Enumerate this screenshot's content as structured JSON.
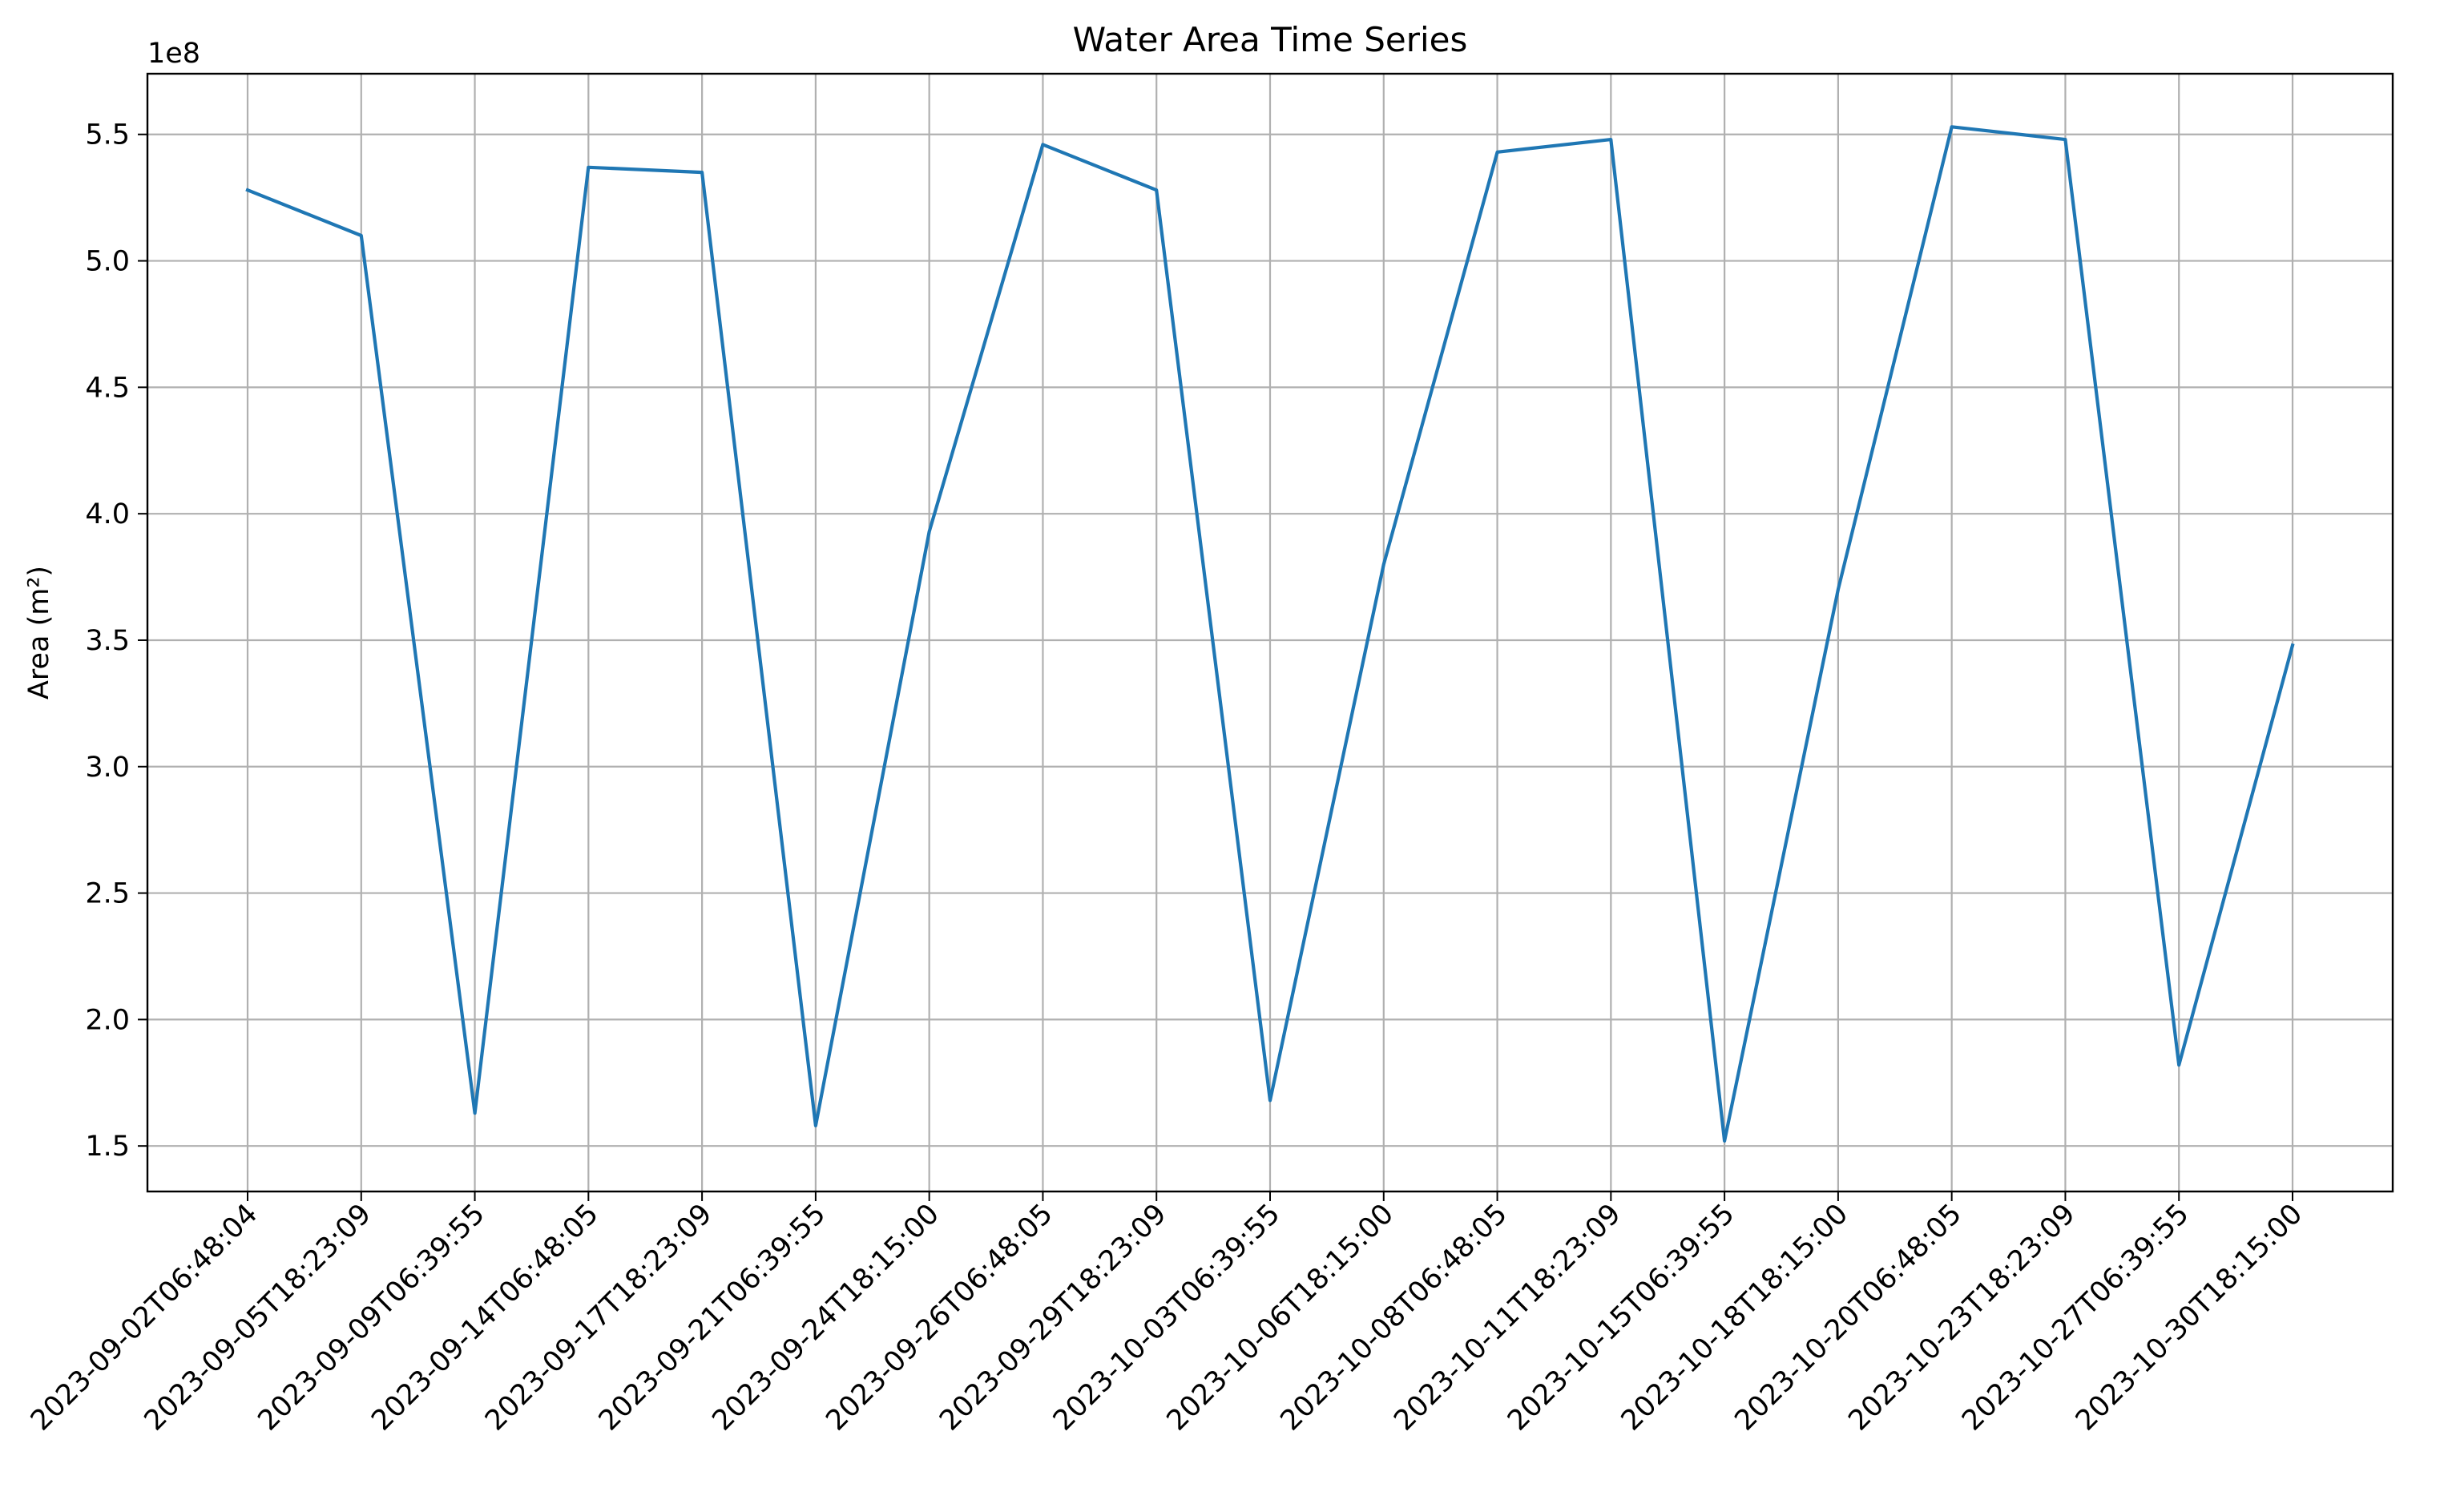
{
  "chart_data": {
    "type": "line",
    "title": "Water Area Time Series",
    "xlabel": "",
    "ylabel": "Area (m²)",
    "y_offset_label": "1e8",
    "ylim": [
      1.32,
      5.74
    ],
    "yticks": [
      1.5,
      2.0,
      2.5,
      3.0,
      3.5,
      4.0,
      4.5,
      5.0,
      5.5
    ],
    "ytick_labels": [
      "1.5",
      "2.0",
      "2.5",
      "3.0",
      "3.5",
      "4.0",
      "4.5",
      "5.0",
      "5.5"
    ],
    "grid": true,
    "x": [
      "2023-09-02T06:48:04",
      "2023-09-05T18:23:09",
      "2023-09-09T06:39:55",
      "2023-09-14T06:48:05",
      "2023-09-17T18:23:09",
      "2023-09-21T06:39:55",
      "2023-09-24T18:15:00",
      "2023-09-26T06:48:05",
      "2023-09-29T18:23:09",
      "2023-10-03T06:39:55",
      "2023-10-06T18:15:00",
      "2023-10-08T06:48:05",
      "2023-10-11T18:23:09",
      "2023-10-15T06:39:55",
      "2023-10-18T18:15:00",
      "2023-10-20T06:48:05",
      "2023-10-23T18:23:09",
      "2023-10-27T06:39:55",
      "2023-10-30T18:15:00"
    ],
    "series": [
      {
        "name": "",
        "color": "#1f77b4",
        "values": [
          528000000,
          510000000,
          163000000,
          537000000,
          535000000,
          158000000,
          393000000,
          546000000,
          528000000,
          168000000,
          380000000,
          543000000,
          548000000,
          152000000,
          370000000,
          553000000,
          548000000,
          182000000,
          348000000
        ]
      }
    ]
  }
}
